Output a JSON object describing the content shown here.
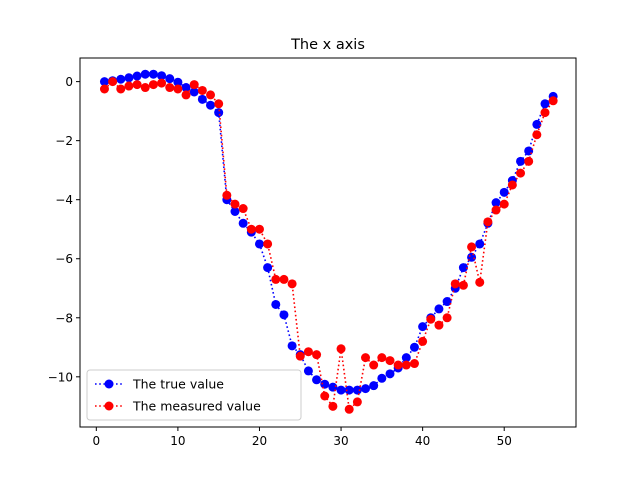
{
  "chart_data": {
    "type": "line",
    "title": "The x axis",
    "xlabel": "",
    "ylabel": "",
    "xlim": [
      -2.0,
      58.8
    ],
    "ylim": [
      -11.7,
      0.8
    ],
    "xticks": [
      0,
      10,
      20,
      30,
      40,
      50
    ],
    "yticks": [
      0,
      -2,
      -4,
      -6,
      -8,
      -10
    ],
    "xtick_labels": [
      "0",
      "10",
      "20",
      "30",
      "40",
      "50"
    ],
    "ytick_labels": [
      "0",
      "−2",
      "−4",
      "−6",
      "−8",
      "−10"
    ],
    "grid": false,
    "legend_position": "lower-left",
    "x": [
      1,
      2,
      3,
      4,
      5,
      6,
      7,
      8,
      9,
      10,
      11,
      12,
      13,
      14,
      15,
      16,
      17,
      18,
      19,
      20,
      21,
      22,
      23,
      24,
      25,
      26,
      27,
      28,
      29,
      30,
      31,
      32,
      33,
      34,
      35,
      36,
      37,
      38,
      39,
      40,
      41,
      42,
      43,
      44,
      45,
      46,
      47,
      48,
      49,
      50,
      51,
      52,
      53,
      54,
      55,
      56
    ],
    "series": [
      {
        "name": "The true value",
        "color": "#0000ff",
        "linestyle": "dotted",
        "marker": "circle",
        "values": [
          0.0,
          0.03,
          0.08,
          0.13,
          0.19,
          0.25,
          0.25,
          0.2,
          0.1,
          -0.02,
          -0.2,
          -0.35,
          -0.6,
          -0.8,
          -1.05,
          -4.0,
          -4.4,
          -4.8,
          -5.1,
          -5.5,
          -6.3,
          -7.55,
          -7.9,
          -8.95,
          -9.25,
          -9.8,
          -10.1,
          -10.25,
          -10.35,
          -10.45,
          -10.45,
          -10.45,
          -10.4,
          -10.3,
          -10.05,
          -9.9,
          -9.7,
          -9.35,
          -9.0,
          -8.3,
          -8.0,
          -7.7,
          -7.45,
          -7.0,
          -6.3,
          -5.95,
          -5.5,
          -4.8,
          -4.1,
          -3.75,
          -3.35,
          -2.7,
          -2.35,
          -1.45,
          -0.75,
          -0.5
        ]
      },
      {
        "name": "The measured value",
        "color": "#ff0000",
        "linestyle": "dotted",
        "marker": "circle",
        "values": [
          -0.25,
          0.0,
          -0.25,
          -0.15,
          -0.1,
          -0.2,
          -0.1,
          -0.05,
          -0.2,
          -0.25,
          -0.45,
          -0.1,
          -0.3,
          -0.45,
          -0.75,
          -3.85,
          -4.15,
          -4.3,
          -5.0,
          -5.0,
          -5.5,
          -6.7,
          -6.7,
          -6.85,
          -9.3,
          -9.15,
          -9.25,
          -10.65,
          -11.0,
          -9.05,
          -11.1,
          -10.85,
          -9.35,
          -9.6,
          -9.35,
          -9.45,
          -9.6,
          -9.6,
          -9.55,
          -8.8,
          -8.05,
          -8.25,
          -8.0,
          -6.85,
          -6.9,
          -5.6,
          -6.8,
          -4.75,
          -4.35,
          -4.15,
          -3.5,
          -3.1,
          -2.7,
          -1.8,
          -1.05,
          -0.65
        ]
      }
    ]
  }
}
